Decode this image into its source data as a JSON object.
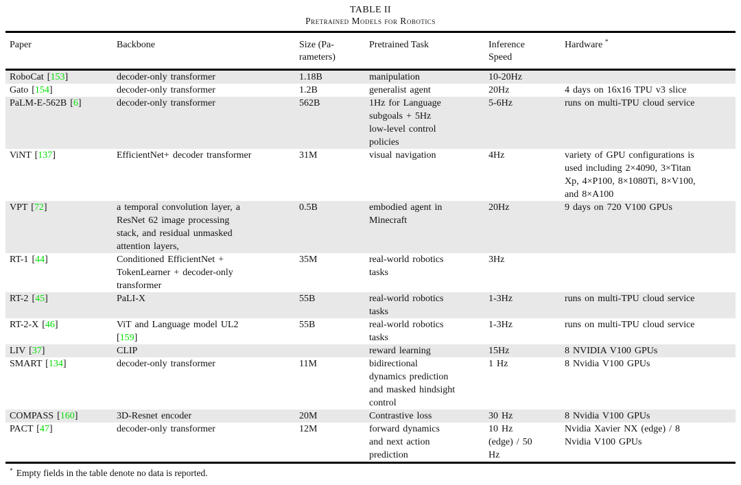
{
  "title": "TABLE II",
  "subtitle": "Pretrained Models for Robotics",
  "colors": {
    "citation": "#00dd00",
    "row_shade": "#e8e8e8",
    "rule": "#000000"
  },
  "table": {
    "columns": [
      {
        "label": "Paper"
      },
      {
        "label": "Backbone"
      },
      {
        "label": "Size (Pa-\nrameters)"
      },
      {
        "label": "Pretrained Task"
      },
      {
        "label": "Inference\nSpeed"
      },
      {
        "label": "Hardware",
        "sup": "*"
      }
    ],
    "rows": [
      {
        "paper": {
          "text": "RoboCat ",
          "cite": "153"
        },
        "backbone": {
          "text": "decoder-only transformer"
        },
        "size": "1.18B",
        "task": "manipulation",
        "speed": "10-20Hz",
        "hardware": "",
        "shaded": true
      },
      {
        "paper": {
          "text": "Gato ",
          "cite": "154"
        },
        "backbone": {
          "text": "decoder-only transformer"
        },
        "size": "1.2B",
        "task": "generalist agent",
        "speed": "20Hz",
        "hardware": "4 days on 16x16 TPU v3 slice",
        "shaded": false
      },
      {
        "paper": {
          "text": "PaLM-E-562B ",
          "cite": "6"
        },
        "backbone": {
          "text": "decoder-only transformer"
        },
        "size": "562B",
        "task": "1Hz for Language\nsubgoals + 5Hz\nlow-level control\npolicies",
        "speed": "5-6Hz",
        "hardware": "runs on multi-TPU cloud service",
        "shaded": true
      },
      {
        "paper": {
          "text": "ViNT ",
          "cite": "137"
        },
        "backbone": {
          "text": "EfficientNet+ decoder transformer"
        },
        "size": "31M",
        "task": "visual navigation",
        "speed": "4Hz",
        "hardware": "variety of GPU configurations is\nused including 2×4090, 3×Titan\nXp, 4×P100, 8×1080Ti, 8×V100,\nand 8×A100",
        "shaded": false
      },
      {
        "paper": {
          "text": "VPT ",
          "cite": "72"
        },
        "backbone": {
          "text": "a temporal convolution layer, a\nResNet 62 image processing\nstack, and residual unmasked\nattention layers,"
        },
        "size": "0.5B",
        "task": "embodied agent in\nMinecraft",
        "speed": "20Hz",
        "hardware": "9 days on 720 V100 GPUs",
        "shaded": true
      },
      {
        "paper": {
          "text": "RT-1 ",
          "cite": "44"
        },
        "backbone": {
          "text": "Conditioned EfficientNet +\nTokenLearner + decoder-only\ntransformer"
        },
        "size": "35M",
        "task": "real-world robotics\ntasks",
        "speed": "3Hz",
        "hardware": "",
        "shaded": false
      },
      {
        "paper": {
          "text": "RT-2 ",
          "cite": "45"
        },
        "backbone": {
          "text": "PaLI-X"
        },
        "size": "55B",
        "task": "real-world robotics\ntasks",
        "speed": "1-3Hz",
        "hardware": "runs on multi-TPU cloud service",
        "shaded": true
      },
      {
        "paper": {
          "text": "RT-2-X ",
          "cite": "46"
        },
        "backbone": {
          "text": "ViT and Language model UL2\n",
          "cite": "159"
        },
        "size": "55B",
        "task": "real-world robotics\ntasks",
        "speed": "1-3Hz",
        "hardware": "runs on multi-TPU cloud service",
        "shaded": false
      },
      {
        "paper": {
          "text": "LIV ",
          "cite": "37"
        },
        "backbone": {
          "text": "CLIP"
        },
        "size": "",
        "task": "reward learning",
        "speed": "15Hz",
        "hardware": "8 NVIDIA V100 GPUs",
        "shaded": true
      },
      {
        "paper": {
          "text": "SMART ",
          "cite": "134"
        },
        "backbone": {
          "text": "decoder-only transformer"
        },
        "size": "11M",
        "task": "bidirectional\ndynamics prediction\nand masked hindsight\ncontrol",
        "speed": "1 Hz",
        "hardware": "8 Nvidia V100 GPUs",
        "shaded": false
      },
      {
        "paper": {
          "text": "COMPASS ",
          "cite": "160"
        },
        "backbone": {
          "text": "3D-Resnet encoder"
        },
        "size": "20M",
        "task": "Contrastive loss",
        "speed": "30 Hz",
        "hardware": "8 Nvidia V100 GPUs",
        "shaded": true
      },
      {
        "paper": {
          "text": "PACT ",
          "cite": "47"
        },
        "backbone": {
          "text": "decoder-only transformer"
        },
        "size": "12M",
        "task": "forward dynamics\nand next action\nprediction",
        "speed": "10 Hz\n(edge) / 50\nHz",
        "hardware": "Nvidia Xavier NX (edge) / 8\nNvidia V100 GPUs",
        "shaded": false
      }
    ]
  },
  "footnote": {
    "marker": "*",
    "text": "Empty fields in the table denote no data is reported."
  }
}
